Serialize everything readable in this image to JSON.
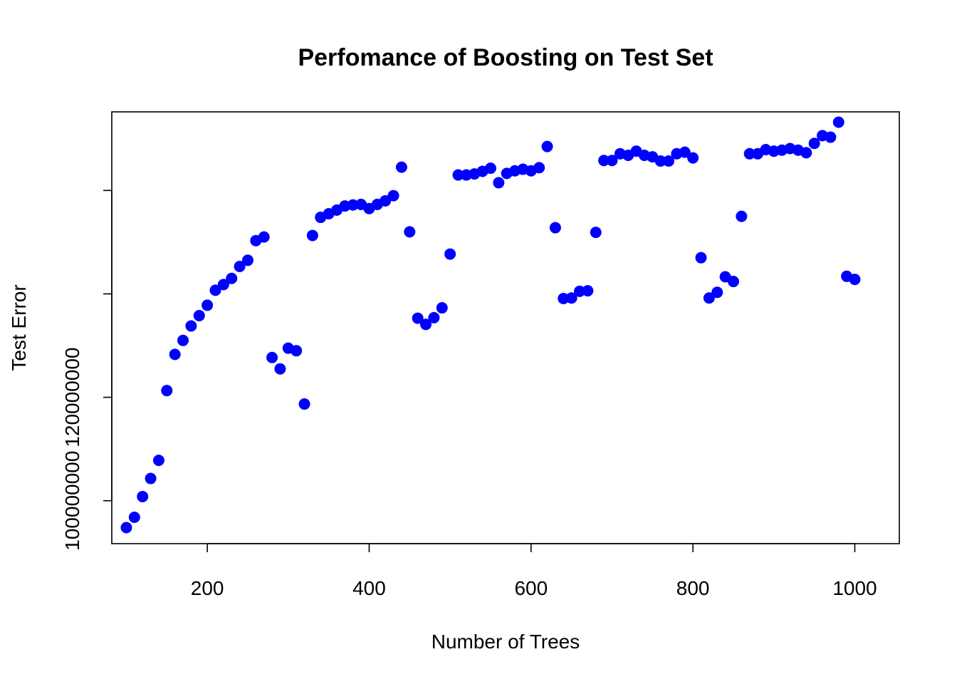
{
  "chart_data": {
    "type": "scatter",
    "title": "Perfomance of Boosting on Test Set",
    "xlabel": "Number of Trees",
    "ylabel": "Test Error",
    "xlim": [
      82,
      1055
    ],
    "ylim": [
      91700000,
      175200000
    ],
    "x_ticks": [
      200,
      400,
      600,
      800,
      1000
    ],
    "y_ticks": [
      100000000,
      120000000,
      140000000,
      160000000
    ],
    "y_tick_labels_shown": [
      "100000000",
      "120000000"
    ],
    "point_color": "#0000ff",
    "grid": false,
    "series": [
      {
        "x": [
          100,
          110,
          120,
          130,
          140,
          150,
          160,
          170,
          180,
          190,
          200,
          210,
          220,
          230,
          240,
          250,
          260,
          270,
          280,
          290,
          300,
          310,
          320,
          330,
          340,
          350,
          360,
          370,
          380,
          390,
          400,
          410,
          420,
          430,
          440,
          450,
          460,
          470,
          480,
          490,
          500,
          510,
          520,
          530,
          540,
          550,
          560,
          570,
          580,
          590,
          600,
          610,
          620,
          630,
          640,
          650,
          660,
          670,
          680,
          690,
          700,
          710,
          720,
          730,
          740,
          750,
          760,
          770,
          780,
          790,
          800,
          810,
          820,
          830,
          840,
          850,
          860,
          870,
          880,
          890,
          900,
          910,
          920,
          930,
          940,
          950,
          960,
          970,
          980,
          990,
          1000
        ],
        "y": [
          94800000,
          96800000,
          100800000,
          104300000,
          107800000,
          121300000,
          128300000,
          131000000,
          133800000,
          135800000,
          137800000,
          140700000,
          141800000,
          143000000,
          145300000,
          146500000,
          150300000,
          151000000,
          127700000,
          125500000,
          129500000,
          129000000,
          118700000,
          151300000,
          154800000,
          155500000,
          156200000,
          157000000,
          157200000,
          157300000,
          156500000,
          157300000,
          158000000,
          159000000,
          164500000,
          152000000,
          135300000,
          134100000,
          135400000,
          137300000,
          147700000,
          163000000,
          163000000,
          163200000,
          163700000,
          164300000,
          161500000,
          163300000,
          163800000,
          164100000,
          163800000,
          164400000,
          168500000,
          152800000,
          139100000,
          139200000,
          140500000,
          140600000,
          151900000,
          165800000,
          165800000,
          167100000,
          166800000,
          167600000,
          166800000,
          166500000,
          165700000,
          165700000,
          167100000,
          167400000,
          166300000,
          147000000,
          139200000,
          140300000,
          143300000,
          142400000,
          155000000,
          167100000,
          167100000,
          167900000,
          167600000,
          167800000,
          168100000,
          167800000,
          167300000,
          169100000,
          170600000,
          170300000,
          173200000,
          143400000,
          142800000
        ]
      }
    ]
  }
}
